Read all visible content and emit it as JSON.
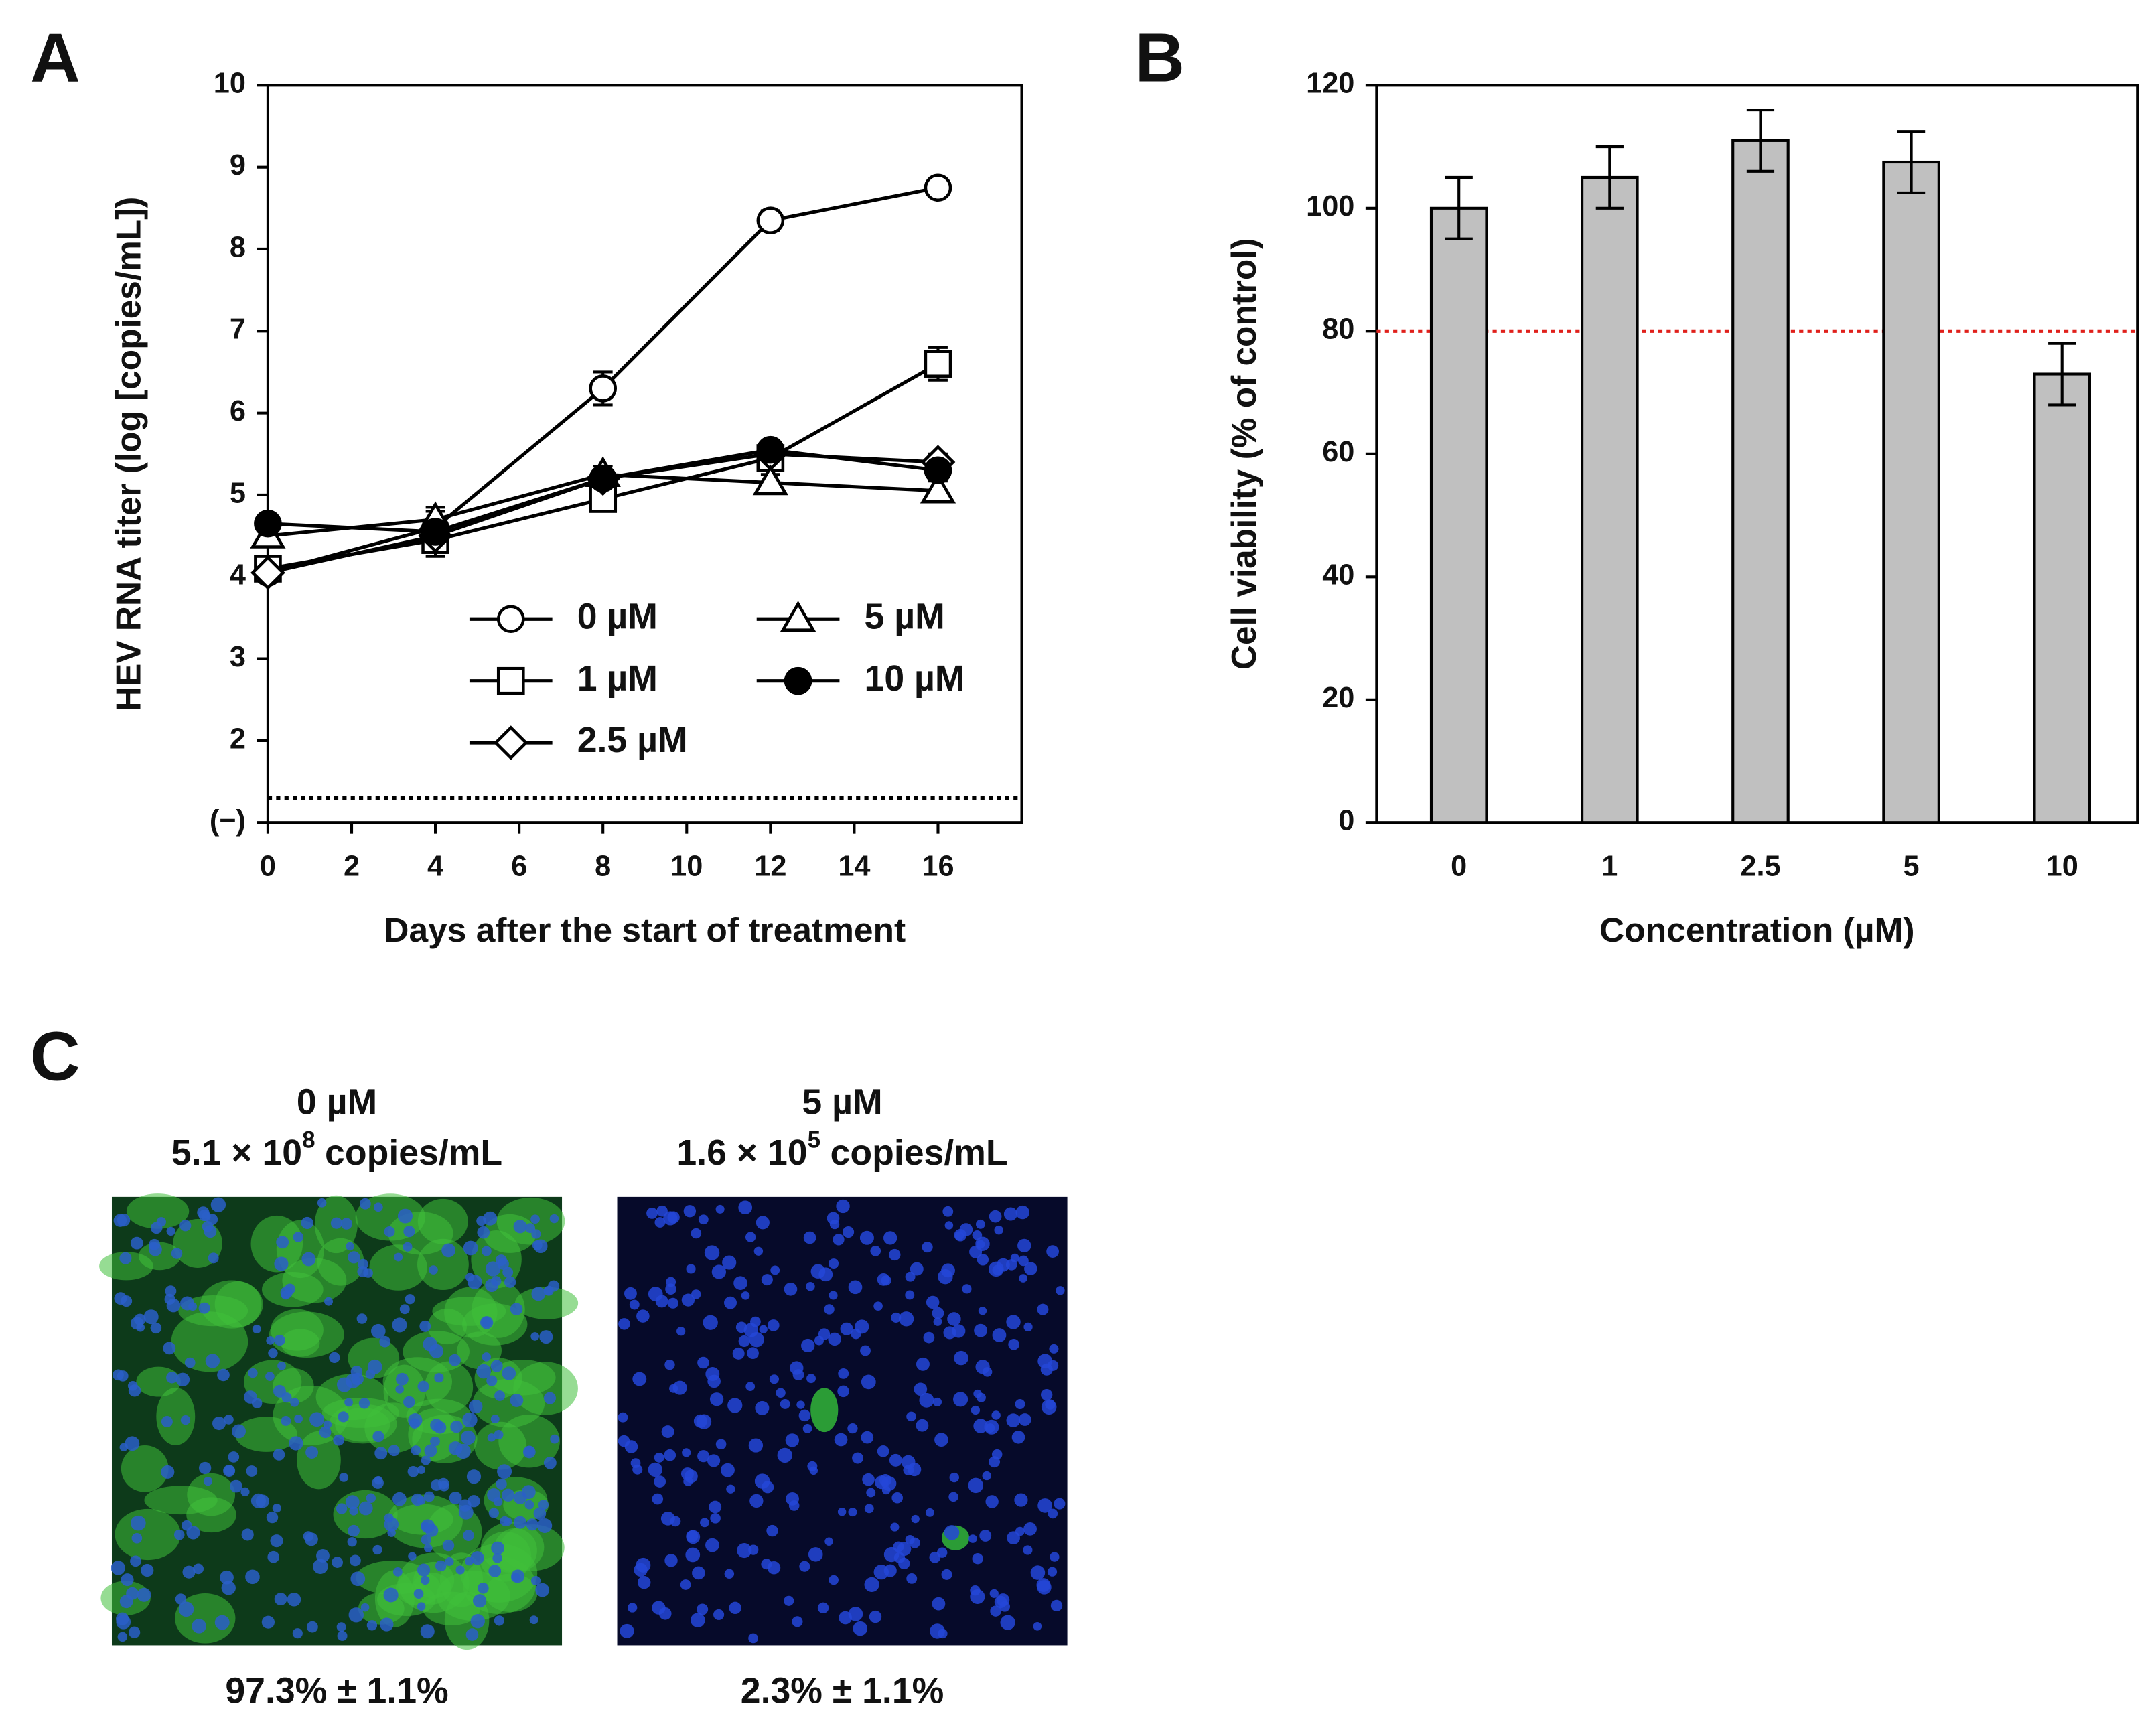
{
  "chart_data": [
    {
      "type": "line",
      "panel_label": "A",
      "x_label": "Days after the start of treatment",
      "y_label": "HEV RNA titer (log [copies/mL])",
      "x": [
        0,
        4,
        8,
        12,
        16
      ],
      "series": [
        {
          "name": "0 µM",
          "color": "#000000",
          "marker": "circle-open",
          "values": [
            4.05,
            4.6,
            6.3,
            8.35,
            8.75
          ],
          "errors": [
            0.1,
            0.25,
            0.2,
            0.12,
            0.05
          ]
        },
        {
          "name": "1 µM",
          "color": "#000000",
          "marker": "square-open",
          "values": [
            4.1,
            4.45,
            4.95,
            5.45,
            6.6
          ],
          "errors": [
            0.1,
            0.2,
            0.15,
            0.1,
            0.2
          ]
        },
        {
          "name": "2.5 µM",
          "color": "#000000",
          "marker": "diamond-open",
          "values": [
            4.05,
            4.5,
            5.2,
            5.5,
            5.4
          ],
          "errors": [
            0.1,
            0.1,
            0.1,
            0.1,
            0.1
          ]
        },
        {
          "name": "5 µM",
          "color": "#000000",
          "marker": "triangle-open",
          "values": [
            4.5,
            4.7,
            5.25,
            5.15,
            5.05
          ],
          "errors": [
            0.1,
            0.1,
            0.1,
            0.1,
            0.12
          ]
        },
        {
          "name": "10 µM",
          "color": "#000000",
          "marker": "circle-filled",
          "values": [
            4.65,
            4.55,
            5.2,
            5.55,
            5.3
          ],
          "errors": [
            0.05,
            0.1,
            0.1,
            0.05,
            0.1
          ]
        }
      ],
      "xlim": [
        0,
        18
      ],
      "xticks": [
        0,
        2,
        4,
        6,
        8,
        10,
        12,
        14,
        16
      ],
      "ylim": [
        1,
        10
      ],
      "yticks": [
        {
          "value": 1,
          "label": "(−)"
        },
        2,
        3,
        4,
        5,
        6,
        7,
        8,
        9,
        10
      ],
      "hlines": [
        {
          "value": 1.3,
          "color": "#000000"
        }
      ],
      "legend": "lower right"
    },
    {
      "type": "bar",
      "panel_label": "B",
      "x_label": "Concentration (µM)",
      "y_label": "Cell viability (% of control)",
      "categories": [
        "0",
        "1",
        "2.5",
        "5",
        "10"
      ],
      "values": [
        100,
        105,
        111,
        107.5,
        73
      ],
      "errors": [
        5,
        5,
        5,
        5,
        5
      ],
      "color": "#c0c0c0",
      "ylim": [
        0,
        120
      ],
      "yticks": [
        0,
        20,
        40,
        60,
        80,
        100,
        120
      ],
      "hlines": [
        {
          "value": 80,
          "color": "#e0201b"
        }
      ]
    }
  ],
  "panel_c": {
    "panel_label": "C",
    "images": [
      {
        "title": "0 µM",
        "titer_mantissa": "5.1 × 10",
        "titer_exponent": "8",
        "titer_unit": "copies/mL",
        "caption": "97.3% ± 1.1%"
      },
      {
        "title": "5 µM",
        "titer_mantissa": "1.6 × 10",
        "titer_exponent": "5",
        "titer_unit": "copies/mL",
        "caption": "2.3% ± 1.1%"
      }
    ]
  }
}
